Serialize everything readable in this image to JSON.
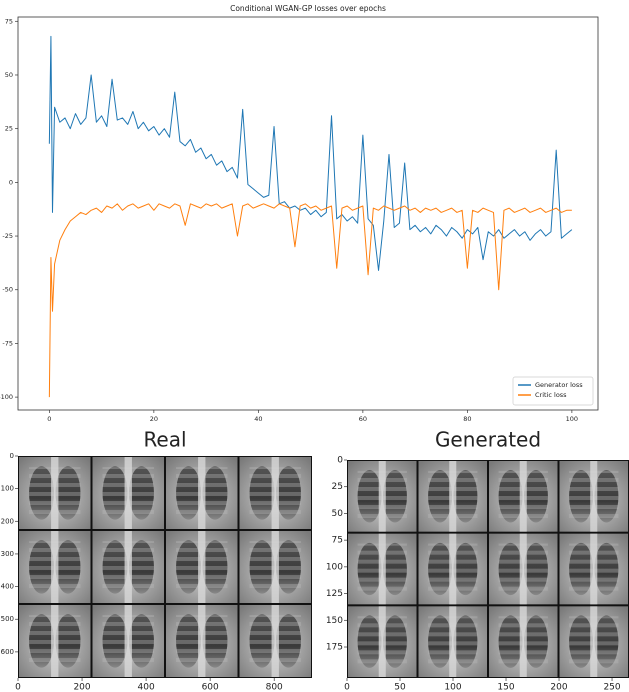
{
  "chart_data": [
    {
      "type": "line",
      "title": "Conditional WGAN-GP losses over epochs",
      "x": [
        0,
        0.3,
        0.6,
        1,
        2,
        3,
        4,
        5,
        6,
        7,
        8,
        9,
        10,
        11,
        12,
        13,
        14,
        15,
        16,
        17,
        18,
        19,
        20,
        21,
        22,
        23,
        24,
        25,
        26,
        27,
        28,
        29,
        30,
        31,
        32,
        33,
        34,
        35,
        36,
        37,
        38,
        39,
        40,
        41,
        42,
        43,
        44,
        45,
        46,
        47,
        48,
        49,
        50,
        51,
        52,
        53,
        54,
        55,
        56,
        57,
        58,
        59,
        60,
        61,
        62,
        63,
        64,
        65,
        66,
        67,
        68,
        69,
        70,
        71,
        72,
        73,
        74,
        75,
        76,
        77,
        78,
        79,
        80,
        81,
        82,
        83,
        84,
        85,
        86,
        87,
        88,
        89,
        90,
        91,
        92,
        93,
        94,
        95,
        96,
        97,
        98,
        99,
        100
      ],
      "series": [
        {
          "name": "Generator loss",
          "color": "#1f77b4",
          "values": [
            18,
            68,
            -14,
            35,
            28,
            30,
            25,
            32,
            27,
            30,
            50,
            28,
            31,
            26,
            48,
            29,
            30,
            27,
            33,
            25,
            28,
            24,
            26,
            22,
            25,
            21,
            42,
            19,
            17,
            20,
            14,
            16,
            11,
            13,
            8,
            10,
            5,
            7,
            2,
            34,
            -1,
            -3,
            -5,
            -7,
            -6,
            26,
            -10,
            -9,
            -12,
            -11,
            -13,
            -12,
            -15,
            -13,
            -16,
            -14,
            31,
            -17,
            -15,
            -18,
            -16,
            -19,
            22,
            -17,
            -20,
            -41,
            -18,
            13,
            -21,
            -19,
            9,
            -22,
            -20,
            -23,
            -21,
            -24,
            -20,
            -22,
            -25,
            -21,
            -23,
            -26,
            -22,
            -24,
            -21,
            -36,
            -23,
            -25,
            -22,
            -26,
            -24,
            -22,
            -25,
            -23,
            -27,
            -24,
            -22,
            -25,
            -23,
            15,
            -26,
            -24,
            -22
          ]
        },
        {
          "name": "Critic loss",
          "color": "#ff7f0e",
          "values": [
            -100,
            -35,
            -60,
            -38,
            -27,
            -22,
            -18,
            -16,
            -14,
            -15,
            -13,
            -12,
            -14,
            -11,
            -12,
            -10,
            -13,
            -11,
            -10,
            -12,
            -11,
            -10,
            -13,
            -10,
            -11,
            -12,
            -10,
            -11,
            -20,
            -10,
            -11,
            -12,
            -10,
            -11,
            -10,
            -12,
            -11,
            -10,
            -25,
            -11,
            -10,
            -12,
            -11,
            -10,
            -11,
            -12,
            -10,
            -11,
            -12,
            -30,
            -11,
            -10,
            -12,
            -11,
            -13,
            -12,
            -11,
            -40,
            -12,
            -11,
            -13,
            -12,
            -11,
            -43,
            -12,
            -13,
            -11,
            -12,
            -13,
            -12,
            -11,
            -13,
            -12,
            -14,
            -12,
            -13,
            -12,
            -14,
            -13,
            -12,
            -14,
            -13,
            -40,
            -13,
            -14,
            -12,
            -13,
            -14,
            -50,
            -13,
            -12,
            -14,
            -13,
            -12,
            -14,
            -13,
            -12,
            -14,
            -13,
            -12,
            -14,
            -13,
            -13
          ]
        }
      ],
      "xlim": [
        -6,
        105
      ],
      "ylim": [
        -106,
        77
      ],
      "xticks": [
        0,
        20,
        40,
        60,
        80,
        100
      ],
      "yticks": [
        -100,
        -75,
        -50,
        -25,
        0,
        25,
        50,
        75
      ],
      "legend": "lower right"
    },
    {
      "type": "image",
      "title": "Real",
      "xlim": [
        0,
        918
      ],
      "ylim": [
        0,
        680
      ],
      "xticks": [
        0,
        200,
        400,
        600,
        800
      ],
      "yticks": [
        0,
        100,
        200,
        300,
        400,
        500,
        600
      ]
    },
    {
      "type": "image",
      "title": "Generated",
      "xlim": [
        0,
        266
      ],
      "ylim": [
        0,
        204
      ],
      "xticks": [
        0,
        50,
        100,
        150,
        200,
        250
      ],
      "yticks": [
        0,
        25,
        50,
        75,
        100,
        125,
        150,
        175
      ]
    }
  ]
}
